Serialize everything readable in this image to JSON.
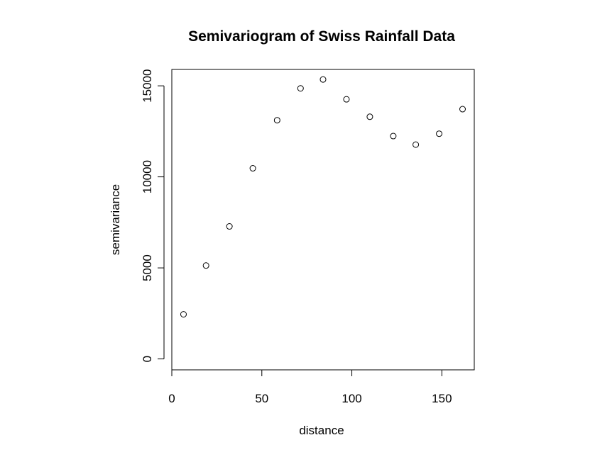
{
  "chart_data": {
    "type": "scatter",
    "title": "Semivariogram of Swiss Rainfall Data",
    "xlabel": "distance",
    "ylabel": "semivariance",
    "xlim": [
      0,
      168
    ],
    "ylim": [
      -600,
      15900
    ],
    "xticks": [
      0,
      50,
      100,
      150
    ],
    "yticks": [
      0,
      5000,
      10000,
      15000
    ],
    "grid": false,
    "marker": "open-circle",
    "points": [
      {
        "x": 6.5,
        "y": 2450
      },
      {
        "x": 19,
        "y": 5130
      },
      {
        "x": 32,
        "y": 7280
      },
      {
        "x": 45,
        "y": 10470
      },
      {
        "x": 58.5,
        "y": 13110
      },
      {
        "x": 71.5,
        "y": 14860
      },
      {
        "x": 84,
        "y": 15350
      },
      {
        "x": 97,
        "y": 14260
      },
      {
        "x": 110,
        "y": 13300
      },
      {
        "x": 123,
        "y": 12240
      },
      {
        "x": 135.5,
        "y": 11770
      },
      {
        "x": 148.5,
        "y": 12370
      },
      {
        "x": 161.5,
        "y": 13720
      }
    ]
  }
}
